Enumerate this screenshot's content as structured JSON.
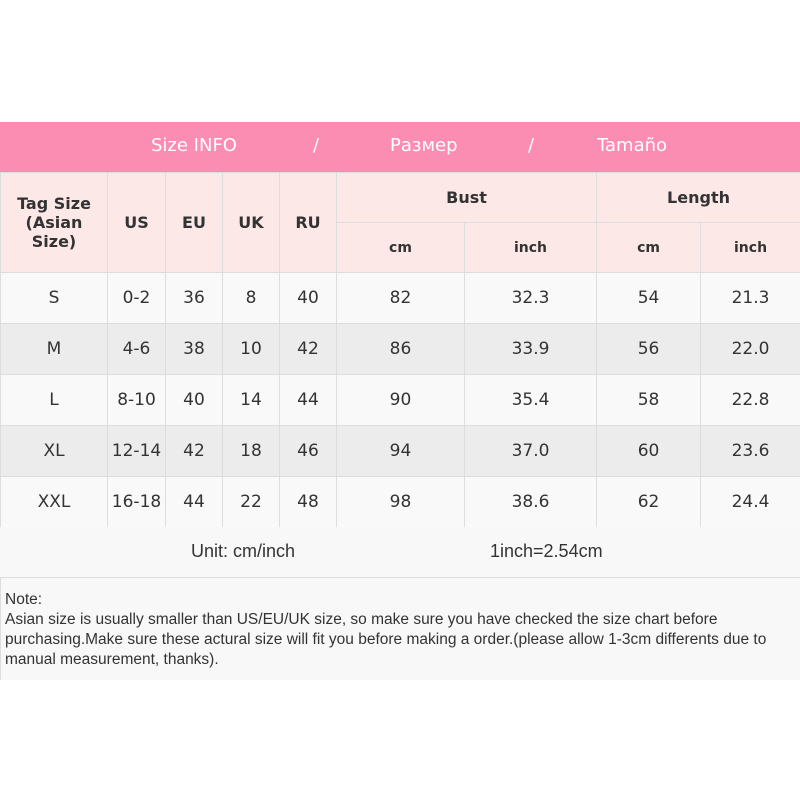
{
  "banner": {
    "title1": "Size INFO",
    "sep1": "/",
    "title2": "Размер",
    "sep2": "/",
    "title3": "Tamaño"
  },
  "headers": {
    "tag": "Tag Size",
    "tag_sub": "(Asian Size)",
    "us": "US",
    "eu": "EU",
    "uk": "UK",
    "ru": "RU",
    "bust": "Bust",
    "length": "Length",
    "cm": "cm",
    "inch": "inch"
  },
  "rows": [
    [
      "S",
      "0-2",
      "36",
      "8",
      "40",
      "82",
      "32.3",
      "54",
      "21.3"
    ],
    [
      "M",
      "4-6",
      "38",
      "10",
      "42",
      "86",
      "33.9",
      "56",
      "22.0"
    ],
    [
      "L",
      "8-10",
      "40",
      "14",
      "44",
      "90",
      "35.4",
      "58",
      "22.8"
    ],
    [
      "XL",
      "12-14",
      "42",
      "18",
      "46",
      "94",
      "37.0",
      "60",
      "23.6"
    ],
    [
      "XXL",
      "16-18",
      "44",
      "22",
      "48",
      "98",
      "38.6",
      "62",
      "24.4"
    ]
  ],
  "unit": {
    "label": "Unit: cm/inch",
    "conversion": "1inch=2.54cm"
  },
  "note": {
    "title": "Note:",
    "text": "Asian size is usually smaller than US/EU/UK size, so make sure you have checked the size chart before purchasing.Make sure these actural size will fit you before making a order.(please allow 1-3cm differents due to manual measurement, thanks)."
  }
}
